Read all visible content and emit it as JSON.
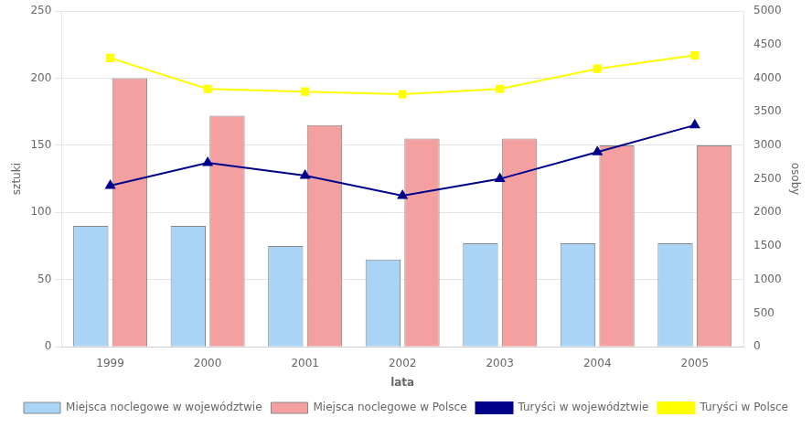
{
  "chart_data": {
    "type": "bar",
    "xlabel": "lata",
    "ylabel": "sztuki",
    "y2label": "osoby",
    "categories": [
      "1999",
      "2000",
      "2001",
      "2002",
      "2003",
      "2004",
      "2005"
    ],
    "series": [
      {
        "name": "Miejsca noclegowe w województwie",
        "type": "bar",
        "color": "#aad4f5",
        "values": [
          90,
          90,
          75,
          65,
          77,
          77,
          77
        ]
      },
      {
        "name": "Miejsca noclegowe w Polsce",
        "type": "bar",
        "color": "#f4a0a0",
        "values": [
          200,
          172,
          165,
          155,
          155,
          150,
          150
        ]
      },
      {
        "name": "Turyści w województwie",
        "type": "line",
        "color": "#00008B",
        "marker": "triangle",
        "axis": "y2",
        "values": [
          2400,
          2740,
          2550,
          2250,
          2500,
          2900,
          3300
        ]
      },
      {
        "name": "Turyści w Polsce",
        "type": "line",
        "color": "#FFFF00",
        "marker": "square",
        "axis": "y2",
        "values": [
          4300,
          3840,
          3800,
          3760,
          3840,
          4140,
          4340
        ]
      }
    ],
    "ylim": [
      0,
      250
    ],
    "yticks": [
      0,
      50,
      100,
      150,
      200,
      250
    ],
    "y2lim": [
      0,
      5000
    ],
    "y2ticks": [
      0,
      500,
      1000,
      1500,
      2000,
      2500,
      3000,
      3500,
      4000,
      4500,
      5000
    ],
    "grid": true,
    "legend": "bottom"
  }
}
